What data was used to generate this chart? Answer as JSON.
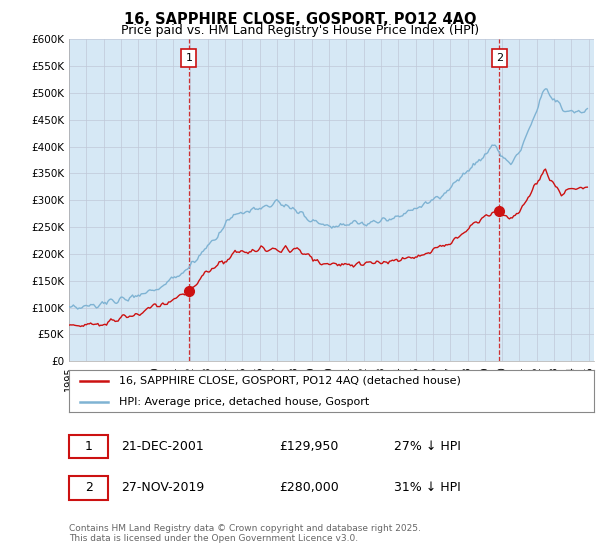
{
  "title": "16, SAPPHIRE CLOSE, GOSPORT, PO12 4AQ",
  "subtitle": "Price paid vs. HM Land Registry's House Price Index (HPI)",
  "ylim": [
    0,
    600000
  ],
  "yticks": [
    0,
    50000,
    100000,
    150000,
    200000,
    250000,
    300000,
    350000,
    400000,
    450000,
    500000,
    550000,
    600000
  ],
  "ytick_labels": [
    "£0",
    "£50K",
    "£100K",
    "£150K",
    "£200K",
    "£250K",
    "£300K",
    "£350K",
    "£400K",
    "£450K",
    "£500K",
    "£550K",
    "£600K"
  ],
  "hpi_color": "#7fb3d3",
  "hpi_fill_color": "#d6e8f5",
  "price_color": "#cc1111",
  "sale1_date": "21-DEC-2001",
  "sale1_price": "£129,950",
  "sale1_hpi": "27% ↓ HPI",
  "sale1_price_val": 129950,
  "sale1_year": 2001.917,
  "sale2_date": "27-NOV-2019",
  "sale2_price": "£280,000",
  "sale2_hpi": "31% ↓ HPI",
  "sale2_price_val": 280000,
  "sale2_year": 2019.833,
  "legend_label1": "16, SAPPHIRE CLOSE, GOSPORT, PO12 4AQ (detached house)",
  "legend_label2": "HPI: Average price, detached house, Gosport",
  "footer": "Contains HM Land Registry data © Crown copyright and database right 2025.\nThis data is licensed under the Open Government Licence v3.0.",
  "background_color": "#ffffff"
}
